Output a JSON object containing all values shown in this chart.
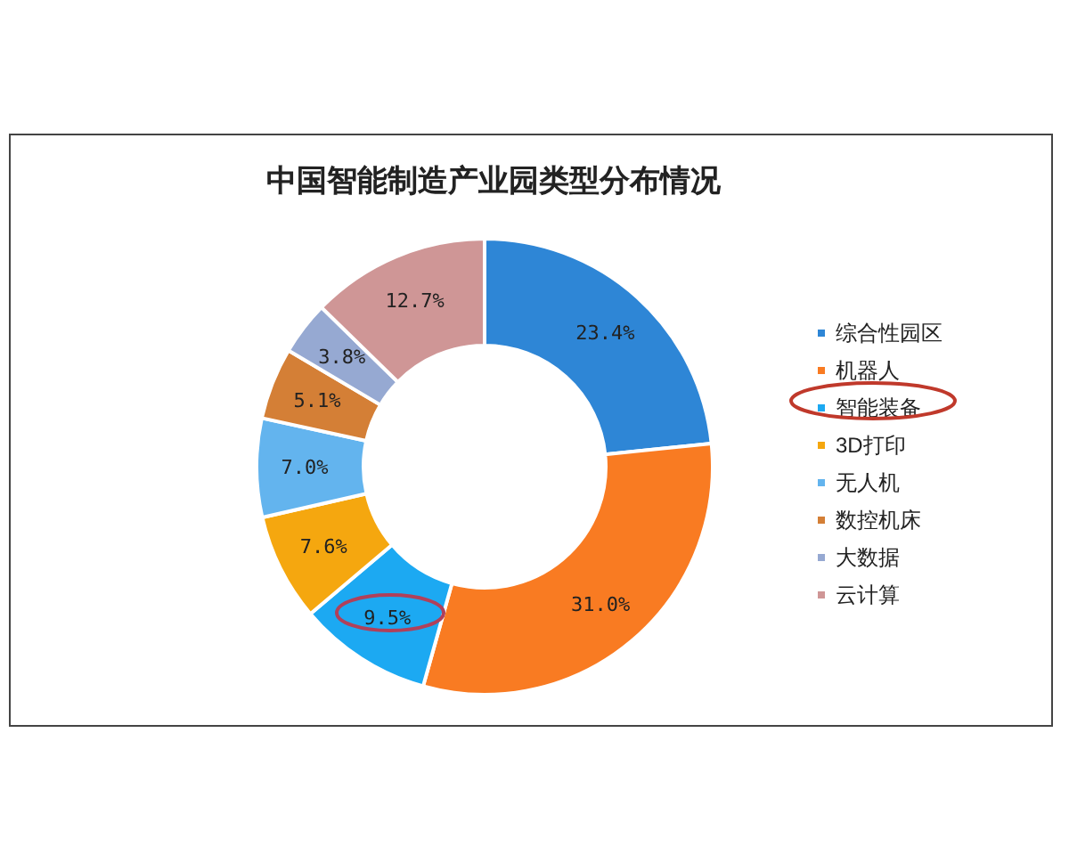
{
  "chart_data": {
    "type": "donut",
    "title": "中国智能制造产业园类型分布情况",
    "categories": [
      "综合性园区",
      "机器人",
      "智能装备",
      "3D打印",
      "无人机",
      "数控机床",
      "大数据",
      "云计算"
    ],
    "values": [
      23.4,
      31.0,
      9.5,
      7.6,
      7.0,
      5.1,
      3.8,
      12.7
    ],
    "colors": [
      "#2e86d6",
      "#f97b22",
      "#1ca9f2",
      "#f5a70f",
      "#63b4ee",
      "#d47f36",
      "#96a9d2",
      "#cf9696"
    ],
    "value_labels": [
      "23.4%",
      "31.0%",
      "9.5%",
      "7.6%",
      "7.0%",
      "5.1%",
      "3.8%",
      "12.7%"
    ],
    "legend": "right"
  }
}
